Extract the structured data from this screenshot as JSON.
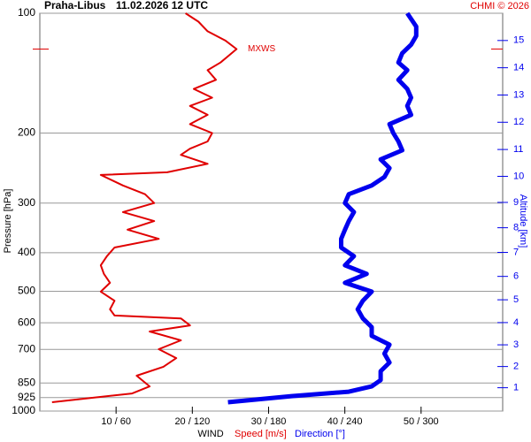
{
  "chart_data": {
    "type": "line",
    "title": "Praha-Libus",
    "subtitle": "11.02.2026 12 UTC",
    "credit": "CHMI © 2026",
    "ylabel": "Pressure [hPa]",
    "y2label": "Altitude [km]",
    "xlabel": "WIND",
    "ylim": [
      1000,
      100
    ],
    "log_y": true,
    "yticks": [
      100,
      200,
      300,
      400,
      500,
      600,
      700,
      850,
      925,
      1000
    ],
    "y2ticks": [
      1,
      2,
      3,
      4,
      5,
      6,
      7,
      8,
      9,
      10,
      11,
      12,
      13,
      14,
      15
    ],
    "xlim": [
      0,
      60.7
    ],
    "xticks": [
      {
        "value": 10,
        "label": "10 / 60"
      },
      {
        "value": 20,
        "label": "20 / 120"
      },
      {
        "value": 30,
        "label": "30 / 180"
      },
      {
        "value": 40,
        "label": "40 / 240"
      },
      {
        "value": 50,
        "label": "50 / 300"
      }
    ],
    "grid": true,
    "annotation": {
      "text": "MXWS",
      "pressure": 123
    },
    "series": [
      {
        "name": "Speed [m/s]",
        "color": "#e00000",
        "xlim": [
          0,
          60.7
        ],
        "pressure": [
          950,
          903,
          867,
          815,
          774,
          736,
          699,
          664,
          631,
          609,
          585,
          575,
          555,
          528,
          501,
          476,
          452,
          430,
          408,
          388,
          369,
          350,
          333,
          316,
          300,
          285,
          271,
          255,
          251,
          239,
          227,
          219,
          210,
          200,
          190,
          180,
          171,
          163,
          155,
          147,
          139,
          133,
          123,
          117,
          111,
          105,
          100
        ],
        "values": [
          1.6,
          12.1,
          14.4,
          12.7,
          16.2,
          17.9,
          15.6,
          18.5,
          14.4,
          19.7,
          18.5,
          9.8,
          9.2,
          9.8,
          8.0,
          9.2,
          8.4,
          8.0,
          8.8,
          9.8,
          15.6,
          11.5,
          15.0,
          10.9,
          15.0,
          13.8,
          10.9,
          8.0,
          16.7,
          22.0,
          18.5,
          19.7,
          22.0,
          22.6,
          19.7,
          22.0,
          19.7,
          22.6,
          20.2,
          23.1,
          22.0,
          23.7,
          25.8,
          24.3,
          22.0,
          20.8,
          19.1
        ]
      },
      {
        "name": "Direction [°]",
        "color": "#0000ee",
        "xlim": [
          0,
          364
        ],
        "pressure": [
          950,
          917,
          894,
          867,
          836,
          794,
          755,
          717,
          681,
          647,
          615,
          585,
          555,
          528,
          501,
          476,
          452,
          430,
          408,
          388,
          369,
          350,
          333,
          316,
          300,
          285,
          271,
          258,
          245,
          233,
          221,
          210,
          200,
          190,
          180,
          171,
          163,
          155,
          147,
          139,
          133,
          126,
          120,
          114,
          108,
          100
        ],
        "values": [
          148,
          198,
          243,
          261,
          268,
          268,
          275,
          271,
          275,
          261,
          261,
          254,
          250,
          254,
          261,
          240,
          257,
          240,
          247,
          237,
          237,
          240,
          243,
          247,
          240,
          243,
          261,
          271,
          275,
          268,
          285,
          282,
          278,
          275,
          292,
          289,
          292,
          289,
          282,
          289,
          282,
          285,
          292,
          296,
          296,
          289
        ]
      }
    ]
  }
}
